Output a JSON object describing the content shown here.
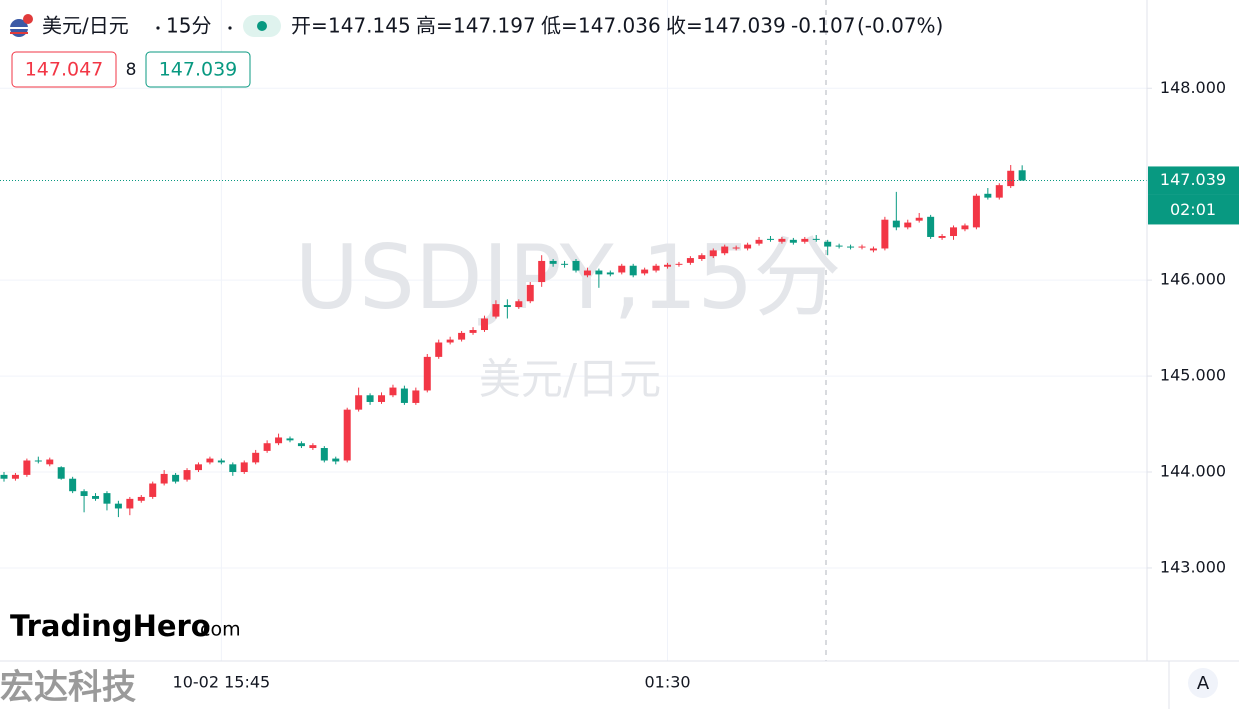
{
  "chart_data": {
    "type": "candlestick",
    "header": {
      "symbol": "美元/日元",
      "interval": "15分",
      "labels": [
        "开=",
        "高=",
        "低=",
        "收="
      ],
      "change": -0.107,
      "change_percent": {
        "value": -0.07,
        "label": "(-0.07%)"
      }
    },
    "quote": {
      "sell": 147.047,
      "spread": 8,
      "buy": 147.039
    },
    "watermark": {
      "title": "USDJPY,15分",
      "subtitle": "美元/日元"
    },
    "countdown": "02:01",
    "up_color": "#f23645",
    "down_color": "#089981",
    "grid": true,
    "categories": [
      null,
      null,
      null,
      null,
      null,
      null,
      null,
      null,
      null,
      null,
      null,
      null,
      null,
      null,
      null,
      null,
      null,
      null,
      null,
      "10-02 15:45",
      null,
      null,
      null,
      null,
      null,
      null,
      null,
      null,
      null,
      null,
      null,
      null,
      null,
      null,
      null,
      null,
      null,
      null,
      null,
      null,
      null,
      null,
      null,
      null,
      null,
      null,
      null,
      null,
      null,
      null,
      null,
      null,
      null,
      null,
      null,
      null,
      null,
      null,
      "01:30",
      null,
      null,
      null,
      null,
      null,
      null,
      null,
      null,
      null,
      null,
      null,
      null,
      null,
      null,
      null,
      null,
      null,
      null,
      null,
      null,
      null,
      null,
      null,
      null,
      null,
      null,
      null,
      null,
      null,
      null,
      null
    ],
    "open": [
      143.97,
      143.93,
      143.97,
      144.12,
      144.08,
      144.05,
      143.93,
      143.8,
      143.75,
      143.78,
      143.67,
      143.62,
      143.7,
      143.74,
      143.88,
      143.97,
      143.92,
      144.02,
      144.1,
      144.12,
      144.08,
      144.0,
      144.1,
      144.22,
      144.3,
      144.35,
      144.3,
      144.25,
      144.25,
      144.14,
      144.12,
      144.65,
      144.8,
      144.73,
      144.8,
      144.87,
      144.72,
      144.85,
      145.2,
      145.35,
      145.38,
      145.45,
      145.48,
      145.62,
      145.74,
      145.72,
      145.78,
      145.98,
      146.2,
      146.17,
      146.2,
      146.05,
      146.1,
      146.08,
      146.08,
      146.15,
      146.07,
      146.1,
      146.14,
      146.16,
      146.18,
      146.22,
      146.25,
      146.28,
      146.33,
      146.33,
      146.38,
      146.43,
      146.4,
      146.42,
      146.4,
      146.43,
      146.4,
      146.36,
      146.35,
      146.34,
      146.31,
      146.33,
      146.62,
      146.55,
      146.62,
      146.66,
      146.44,
      146.46,
      146.53,
      146.55,
      146.9,
      146.86,
      146.98,
      147.145
    ],
    "high": [
      144.0,
      143.99,
      144.14,
      144.16,
      144.15,
      144.06,
      143.95,
      143.82,
      143.78,
      143.8,
      143.7,
      143.74,
      143.76,
      143.9,
      144.02,
      143.99,
      144.04,
      144.1,
      144.16,
      144.14,
      144.1,
      144.12,
      144.23,
      144.33,
      144.4,
      144.37,
      144.32,
      144.3,
      144.27,
      144.16,
      144.67,
      144.88,
      144.82,
      144.83,
      144.91,
      144.9,
      144.88,
      145.23,
      145.38,
      145.41,
      145.47,
      145.51,
      145.63,
      145.79,
      145.8,
      145.8,
      145.98,
      146.26,
      146.22,
      146.2,
      146.22,
      146.13,
      146.12,
      146.1,
      146.17,
      146.17,
      146.13,
      146.17,
      146.18,
      146.19,
      146.25,
      146.28,
      146.33,
      146.37,
      146.36,
      146.39,
      146.45,
      146.46,
      146.45,
      146.44,
      146.45,
      146.47,
      146.42,
      146.38,
      146.37,
      146.37,
      146.35,
      146.66,
      146.92,
      146.63,
      146.7,
      146.68,
      146.48,
      146.57,
      146.59,
      146.9,
      146.96,
      147.01,
      147.2,
      147.197
    ],
    "low": [
      143.9,
      143.91,
      143.95,
      144.09,
      144.06,
      143.92,
      143.78,
      143.58,
      143.7,
      143.6,
      143.53,
      143.55,
      143.68,
      143.72,
      143.86,
      143.88,
      143.9,
      144.0,
      144.08,
      144.08,
      143.96,
      143.98,
      144.08,
      144.2,
      144.28,
      144.31,
      144.25,
      144.23,
      144.1,
      144.08,
      144.1,
      144.63,
      144.7,
      144.71,
      144.78,
      144.7,
      144.7,
      144.83,
      145.18,
      145.33,
      145.36,
      145.43,
      145.46,
      145.6,
      145.6,
      145.7,
      145.76,
      145.93,
      146.14,
      146.13,
      146.08,
      146.03,
      145.92,
      146.04,
      146.06,
      146.03,
      146.05,
      146.08,
      146.12,
      146.14,
      146.16,
      146.2,
      146.23,
      146.26,
      146.31,
      146.31,
      146.36,
      146.4,
      146.38,
      146.37,
      146.38,
      146.4,
      146.26,
      146.33,
      146.32,
      146.32,
      146.29,
      146.31,
      146.52,
      146.53,
      146.6,
      146.43,
      146.42,
      146.42,
      146.51,
      146.53,
      146.84,
      146.84,
      146.96,
      147.036
    ],
    "close": [
      143.93,
      143.97,
      144.12,
      144.11,
      144.13,
      143.93,
      143.8,
      143.75,
      143.72,
      143.67,
      143.62,
      143.72,
      143.74,
      143.88,
      143.98,
      143.9,
      144.02,
      144.08,
      144.14,
      144.1,
      144.0,
      144.1,
      144.2,
      144.3,
      144.36,
      144.33,
      144.27,
      144.28,
      144.12,
      144.11,
      144.65,
      144.8,
      144.73,
      144.8,
      144.88,
      144.72,
      144.85,
      145.2,
      145.35,
      145.38,
      145.45,
      145.48,
      145.6,
      145.75,
      145.72,
      145.78,
      145.95,
      146.2,
      146.17,
      146.16,
      146.1,
      146.1,
      146.06,
      146.06,
      146.15,
      146.05,
      146.11,
      146.15,
      146.16,
      146.17,
      146.23,
      146.26,
      146.31,
      146.35,
      146.34,
      146.37,
      146.42,
      146.42,
      146.43,
      146.39,
      146.43,
      146.42,
      146.35,
      146.35,
      146.34,
      146.35,
      146.33,
      146.63,
      146.55,
      146.6,
      146.65,
      146.45,
      146.46,
      146.55,
      146.57,
      146.88,
      146.86,
      146.99,
      147.14,
      147.039
    ],
    "ylim": [
      142.03,
      148.92
    ],
    "yticks": [
      {
        "value": 143,
        "label": "143.000"
      },
      {
        "value": 144,
        "label": "144.000"
      },
      {
        "value": 145,
        "label": "145.000"
      },
      {
        "value": 146,
        "label": "146.000"
      },
      {
        "value": 148,
        "label": "148.000"
      }
    ]
  },
  "logo": {
    "name": "TradingHero",
    "domain": ".com"
  },
  "footer": {
    "brand": "宏达科技",
    "button": "A"
  }
}
